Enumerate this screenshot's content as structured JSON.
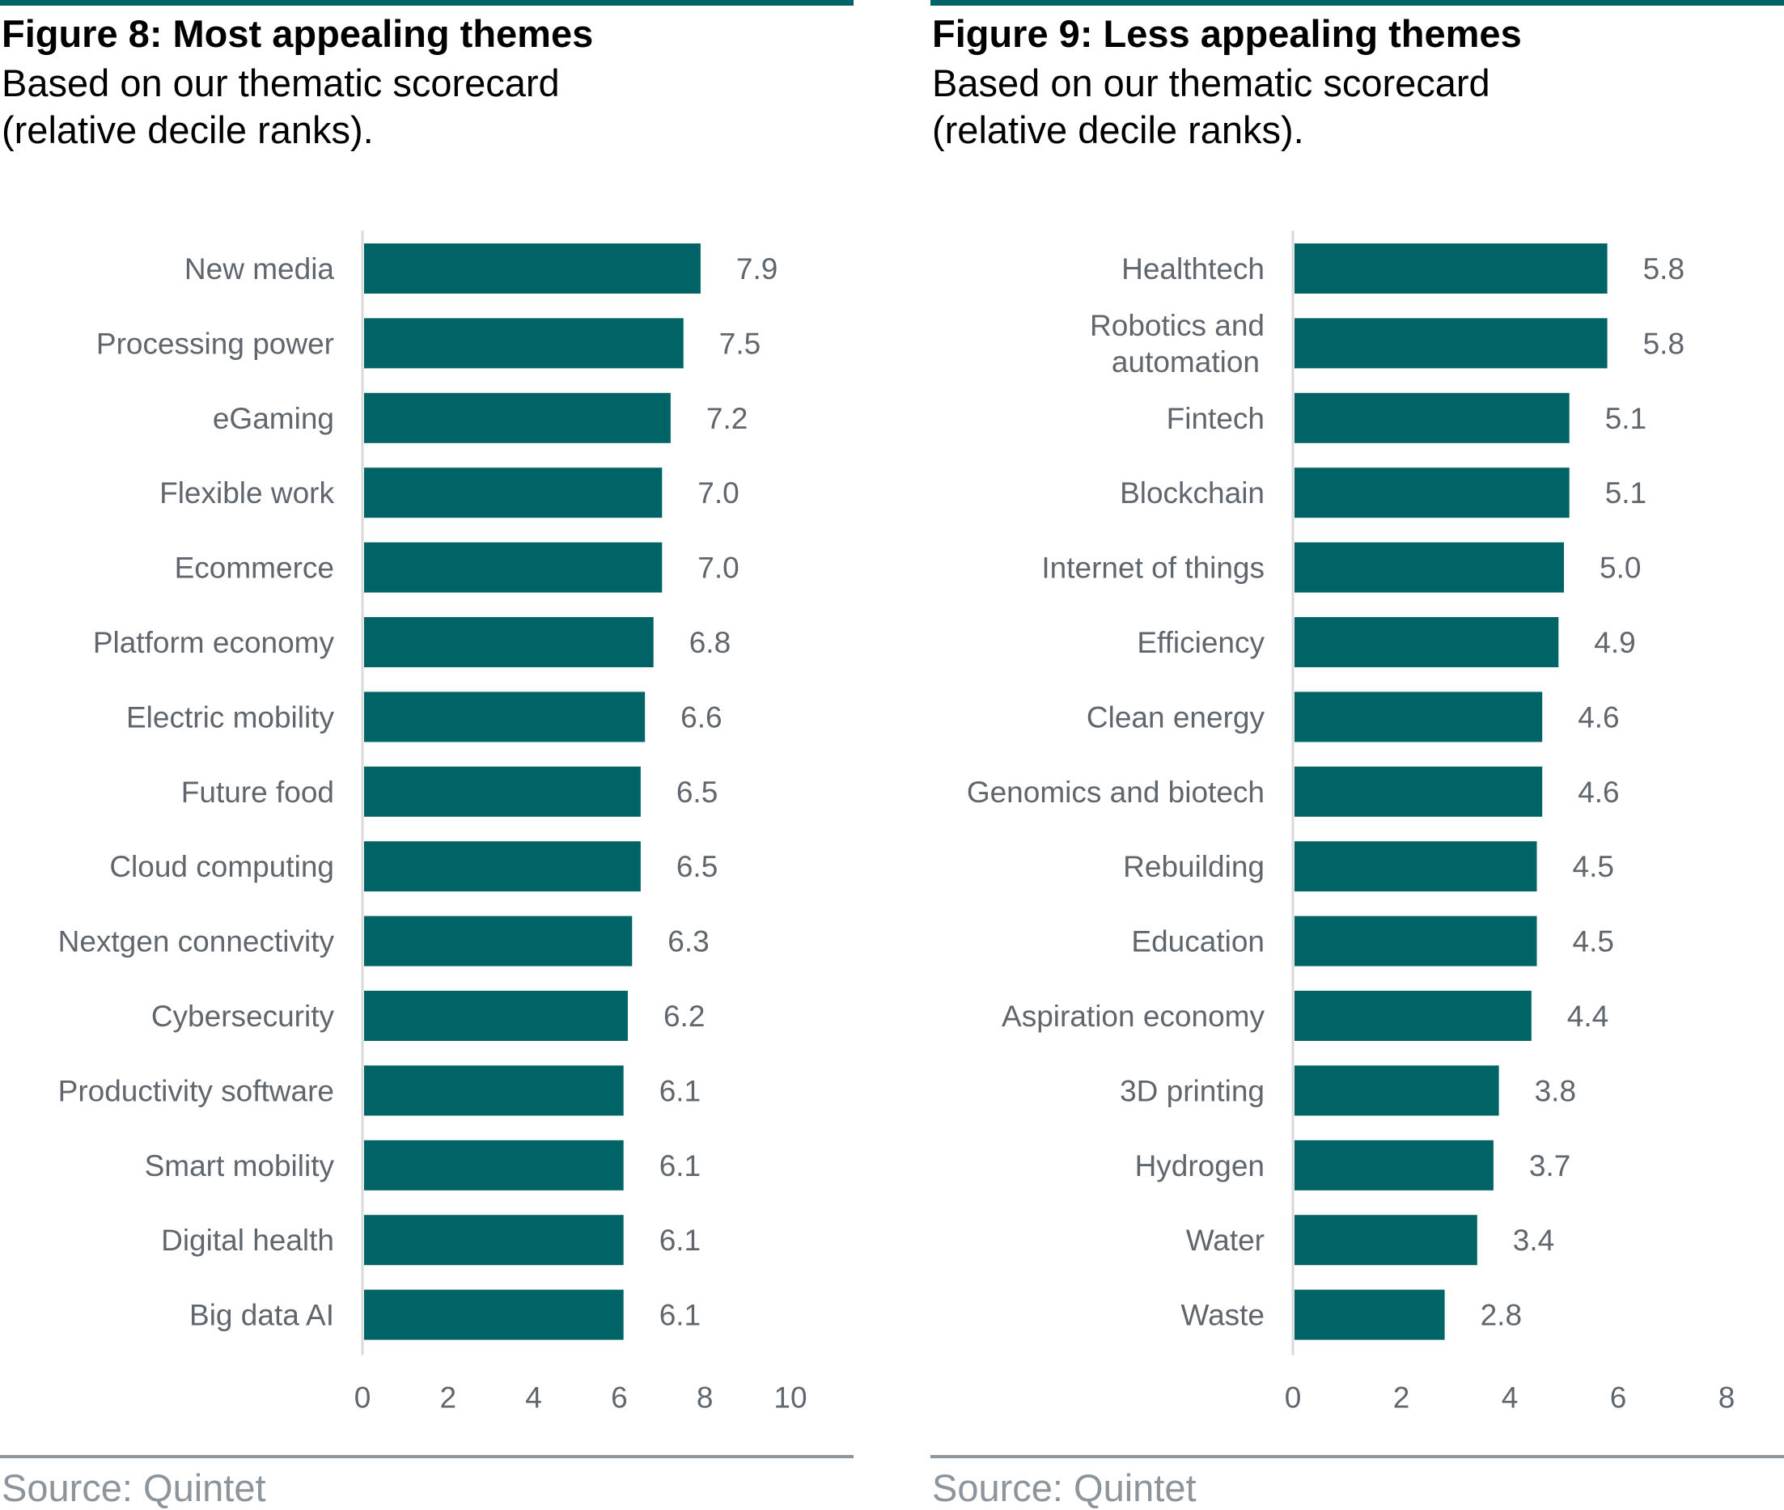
{
  "colors": {
    "bar": "#006466",
    "top_rule": "#006466",
    "axis_line": "#d9d9d9",
    "label_text": "#5f666d",
    "source_text": "#8c949c"
  },
  "left": {
    "title": "Figure 8: Most appealing themes",
    "subtitle_line1": "Based on our thematic scorecard",
    "subtitle_line2": "(relative decile ranks).",
    "source": "Source: Quintet"
  },
  "right": {
    "title": "Figure 9: Less appealing themes",
    "subtitle_line1": "Based on our thematic scorecard",
    "subtitle_line2": "(relative decile ranks).",
    "source": "Source: Quintet"
  },
  "chart_data": [
    {
      "type": "bar",
      "orientation": "horizontal",
      "title": "Figure 8: Most appealing themes",
      "subtitle": "Based on our thematic scorecard (relative decile ranks).",
      "categories": [
        [
          "New media"
        ],
        [
          "Processing power"
        ],
        [
          "eGaming"
        ],
        [
          "Flexible work"
        ],
        [
          "Ecommerce"
        ],
        [
          "Platform economy"
        ],
        [
          "Electric mobility"
        ],
        [
          "Future food"
        ],
        [
          "Cloud computing"
        ],
        [
          "Nextgen connectivity"
        ],
        [
          "Cybersecurity"
        ],
        [
          "Productivity software"
        ],
        [
          "Smart mobility"
        ],
        [
          "Digital health"
        ],
        [
          "Big data AI"
        ]
      ],
      "values": [
        7.9,
        7.5,
        7.2,
        7.0,
        7.0,
        6.8,
        6.6,
        6.5,
        6.5,
        6.3,
        6.2,
        6.1,
        6.1,
        6.1,
        6.1
      ],
      "value_labels": [
        "7.9",
        "7.5",
        "7.2",
        "7.0",
        "7.0",
        "6.8",
        "6.6",
        "6.5",
        "6.5",
        "6.3",
        "6.2",
        "6.1",
        "6.1",
        "6.1",
        "6.1"
      ],
      "xlim": [
        0,
        10
      ],
      "xticks": [
        0,
        2,
        4,
        6,
        8,
        10
      ],
      "xlabel": "",
      "ylabel": "",
      "grid": false,
      "source": "Source: Quintet"
    },
    {
      "type": "bar",
      "orientation": "horizontal",
      "title": "Figure 9: Less appealing themes",
      "subtitle": "Based on our thematic scorecard (relative decile ranks).",
      "categories": [
        [
          "Healthtech"
        ],
        [
          "Robotics and",
          "automation"
        ],
        [
          "Fintech"
        ],
        [
          "Blockchain"
        ],
        [
          "Internet of things"
        ],
        [
          "Efficiency"
        ],
        [
          "Clean energy"
        ],
        [
          "Genomics and biotech"
        ],
        [
          "Rebuilding"
        ],
        [
          "Education"
        ],
        [
          "Aspiration economy"
        ],
        [
          "3D printing"
        ],
        [
          "Hydrogen"
        ],
        [
          "Water"
        ],
        [
          "Waste"
        ]
      ],
      "values": [
        5.8,
        5.8,
        5.1,
        5.1,
        5.0,
        4.9,
        4.6,
        4.6,
        4.5,
        4.5,
        4.4,
        3.8,
        3.7,
        3.4,
        2.8
      ],
      "value_labels": [
        "5.8",
        "5.8",
        "5.1",
        "5.1",
        "5.0",
        "4.9",
        "4.6",
        "4.6",
        "4.5",
        "4.5",
        "4.4",
        "3.8",
        "3.7",
        "3.4",
        "2.8"
      ],
      "xlim": [
        0,
        8
      ],
      "xticks": [
        0,
        2,
        4,
        6,
        8
      ],
      "xlabel": "",
      "ylabel": "",
      "grid": false,
      "source": "Source: Quintet"
    }
  ]
}
